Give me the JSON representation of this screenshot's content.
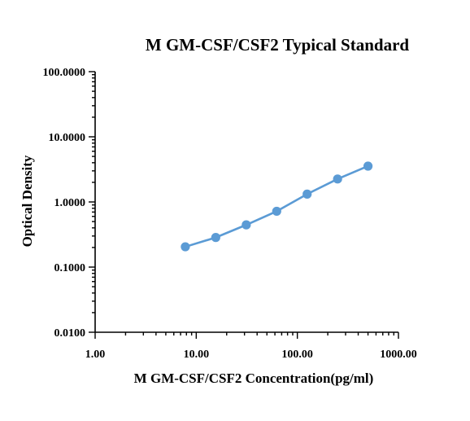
{
  "chart_data": {
    "type": "line",
    "title": "M GM-CSF/CSF2 Typical Standard",
    "xlabel": "M GM-CSF/CSF2 Concentration(pg/ml)",
    "ylabel": "Optical Density",
    "x_scale": "log",
    "y_scale": "log",
    "xlim": [
      1,
      1000
    ],
    "ylim": [
      0.01,
      100
    ],
    "x_tick_values": [
      1,
      10,
      100,
      1000
    ],
    "x_tick_labels": [
      "1.00",
      "10.00",
      "100.00",
      "1000.00"
    ],
    "y_tick_values": [
      0.01,
      0.1,
      1,
      10,
      100
    ],
    "y_tick_labels": [
      "0.0100",
      "0.1000",
      "1.0000",
      "10.0000",
      "100.0000"
    ],
    "grid": false,
    "colors": {
      "series": "#5b9bd5",
      "axis": "#000000"
    },
    "series": [
      {
        "x": [
          7.8,
          15.6,
          31.25,
          62.5,
          125,
          250,
          500
        ],
        "y": [
          0.205,
          0.285,
          0.445,
          0.72,
          1.32,
          2.25,
          3.55
        ]
      }
    ]
  }
}
